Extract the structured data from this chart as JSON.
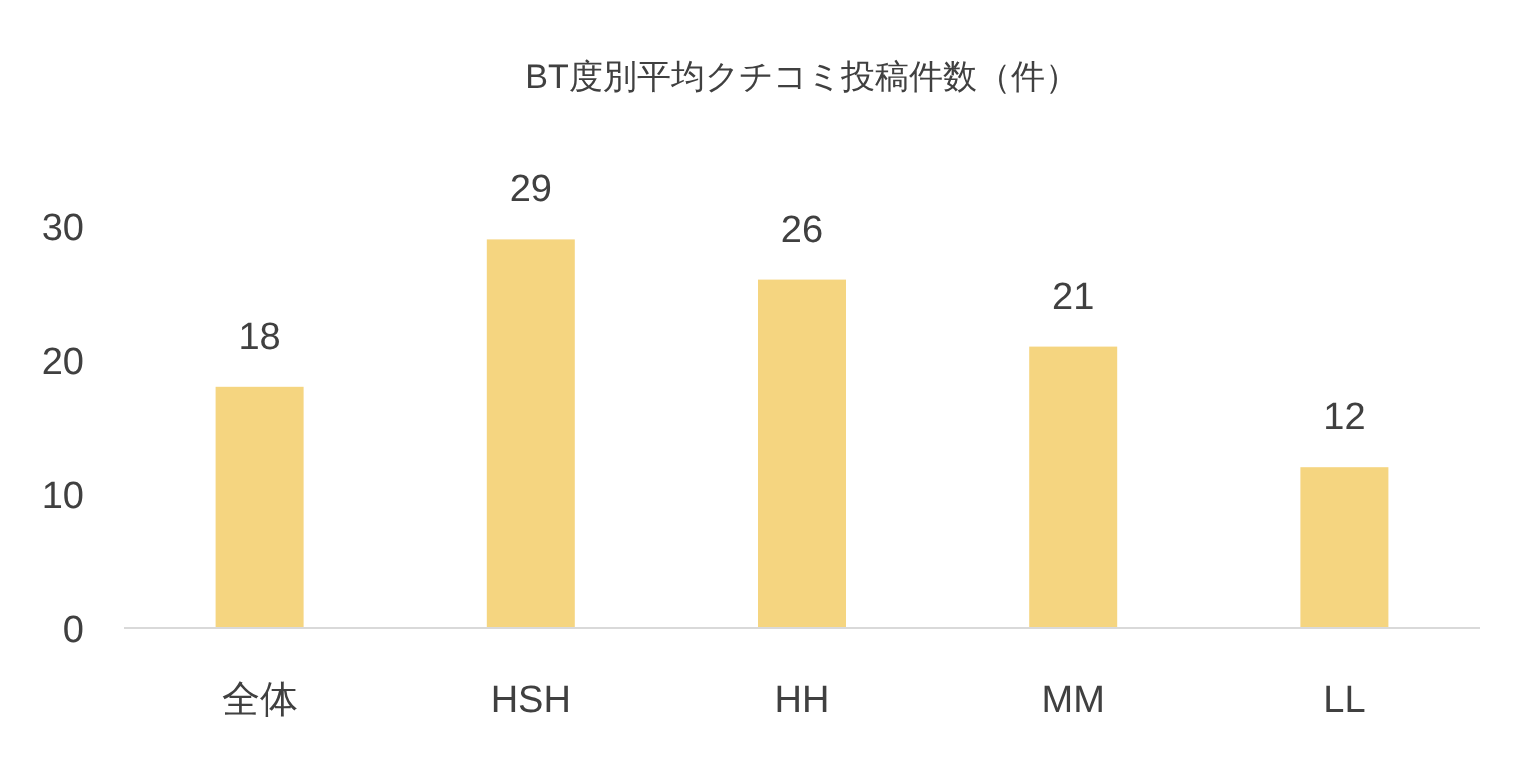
{
  "chart_data": {
    "type": "bar",
    "title": "BT度別平均クチコミ投稿件数（件）",
    "categories": [
      "全体",
      "HSH",
      "HH",
      "MM",
      "LL"
    ],
    "values": [
      18,
      29,
      26,
      21,
      12
    ],
    "color": "#f5d580",
    "ylim": [
      0,
      30
    ],
    "yticks": [
      0,
      10,
      20,
      30
    ],
    "data_labels": true
  }
}
